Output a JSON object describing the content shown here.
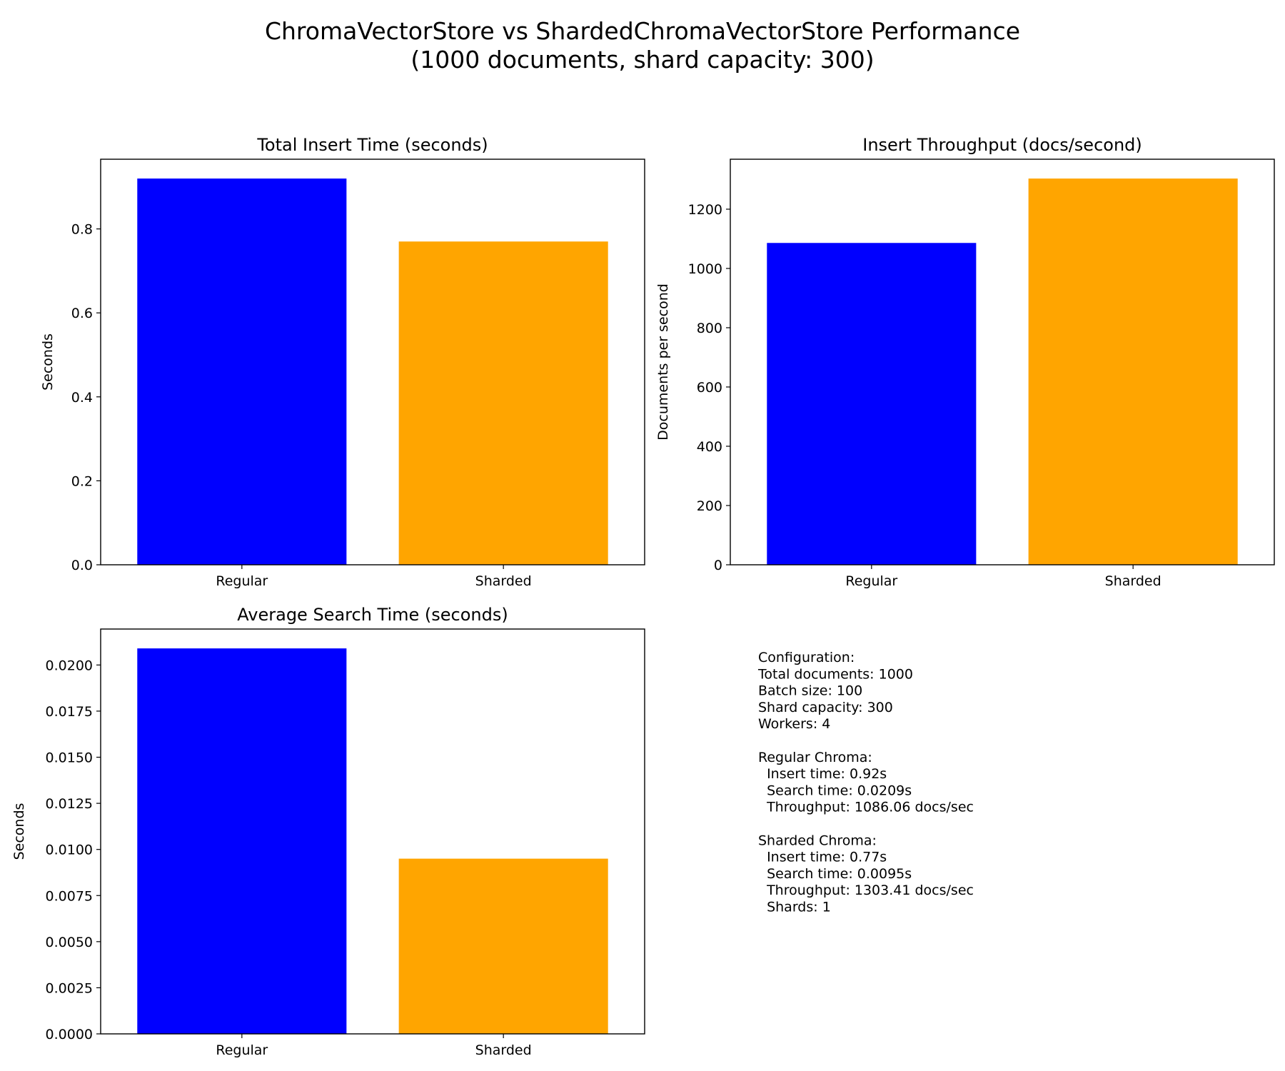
{
  "figure": {
    "title_line1": "ChromaVectorStore vs ShardedChromaVectorStore Performance",
    "title_line2": "(1000 documents, shard capacity: 300)"
  },
  "colors": {
    "regular": "#0000ff",
    "sharded": "#ffa500"
  },
  "chart_data": [
    {
      "type": "bar",
      "title": "Total Insert Time (seconds)",
      "xlabel": "",
      "ylabel": "Seconds",
      "categories": [
        "Regular",
        "Sharded"
      ],
      "values": [
        0.92,
        0.77
      ],
      "ylim": [
        0,
        0.966
      ],
      "yticks": [
        0.0,
        0.2,
        0.4,
        0.6,
        0.8
      ],
      "ytick_labels": [
        "0.0",
        "0.2",
        "0.4",
        "0.6",
        "0.8"
      ],
      "colors": [
        "#0000ff",
        "#ffa500"
      ],
      "grid": false
    },
    {
      "type": "bar",
      "title": "Insert Throughput (docs/second)",
      "xlabel": "",
      "ylabel": "Documents per second",
      "categories": [
        "Regular",
        "Sharded"
      ],
      "values": [
        1086.06,
        1303.41
      ],
      "ylim": [
        0,
        1368.6
      ],
      "yticks": [
        0,
        200,
        400,
        600,
        800,
        1000,
        1200
      ],
      "ytick_labels": [
        "0",
        "200",
        "400",
        "600",
        "800",
        "1000",
        "1200"
      ],
      "colors": [
        "#0000ff",
        "#ffa500"
      ],
      "grid": false
    },
    {
      "type": "bar",
      "title": "Average Search Time (seconds)",
      "xlabel": "",
      "ylabel": "Seconds",
      "categories": [
        "Regular",
        "Sharded"
      ],
      "values": [
        0.0209,
        0.0095
      ],
      "ylim": [
        0,
        0.02195
      ],
      "yticks": [
        0.0,
        0.0025,
        0.005,
        0.0075,
        0.01,
        0.0125,
        0.015,
        0.0175,
        0.02
      ],
      "ytick_labels": [
        "0.0000",
        "0.0025",
        "0.0050",
        "0.0075",
        "0.0100",
        "0.0125",
        "0.0150",
        "0.0175",
        "0.0200"
      ],
      "colors": [
        "#0000ff",
        "#ffa500"
      ],
      "grid": false
    }
  ],
  "config_text": [
    "Configuration:",
    "Total documents: 1000",
    "Batch size: 100",
    "Shard capacity: 300",
    "Workers: 4",
    "",
    "Regular Chroma:",
    "  Insert time: 0.92s",
    "  Search time: 0.0209s",
    "  Throughput: 1086.06 docs/sec",
    "",
    "Sharded Chroma:",
    "  Insert time: 0.77s",
    "  Search time: 0.0095s",
    "  Throughput: 1303.41 docs/sec",
    "  Shards: 1"
  ]
}
